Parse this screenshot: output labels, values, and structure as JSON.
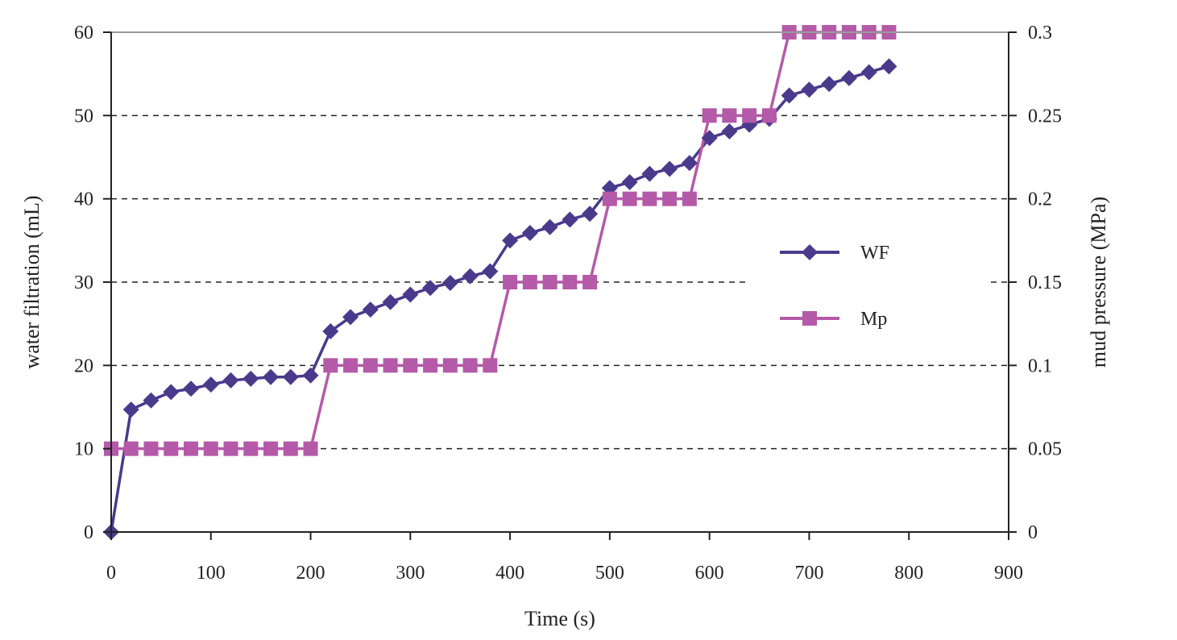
{
  "chart_data": {
    "type": "line",
    "title": "",
    "xlabel": "Time (s)",
    "ylabel": "water filtration (mL)",
    "y2label": "mud pressure (MPa)",
    "xlim": [
      0,
      900
    ],
    "ylim": [
      0,
      60
    ],
    "y2lim": [
      0,
      0.3
    ],
    "xticks": [
      "0",
      "100",
      "200",
      "300",
      "400",
      "500",
      "600",
      "700",
      "800",
      "900"
    ],
    "yticks": [
      "0",
      "10",
      "20",
      "30",
      "40",
      "50",
      "60"
    ],
    "y2ticks": [
      "0",
      "0.05",
      "0.1",
      "0.15",
      "0.2",
      "0.25",
      "0.3"
    ],
    "grid": "horizontal dashed",
    "legend_position": "right",
    "series": [
      {
        "name": "WF",
        "axis": "left",
        "marker": "diamond",
        "color": "#4a3a8c",
        "x": [
          0,
          20,
          40,
          60,
          80,
          100,
          120,
          140,
          160,
          180,
          200,
          220,
          240,
          260,
          280,
          300,
          320,
          340,
          360,
          380,
          400,
          420,
          440,
          460,
          480,
          500,
          520,
          540,
          560,
          580,
          600,
          620,
          640,
          660,
          680,
          700,
          720,
          740,
          760,
          780
        ],
        "values": [
          0,
          14.7,
          15.8,
          16.8,
          17.2,
          17.7,
          18.2,
          18.4,
          18.6,
          18.6,
          18.8,
          24.1,
          25.8,
          26.7,
          27.6,
          28.5,
          29.3,
          29.9,
          30.7,
          31.3,
          35.0,
          35.9,
          36.6,
          37.5,
          38.2,
          41.3,
          42.0,
          43.0,
          43.6,
          44.3,
          47.3,
          48.1,
          48.9,
          49.6,
          52.4,
          53.1,
          53.8,
          54.5,
          55.2,
          55.9
        ]
      },
      {
        "name": "Mp",
        "axis": "right",
        "marker": "square",
        "color": "#b45aa8",
        "x": [
          0,
          20,
          40,
          60,
          80,
          100,
          120,
          140,
          160,
          180,
          200,
          220,
          240,
          260,
          280,
          300,
          320,
          340,
          360,
          380,
          400,
          420,
          440,
          460,
          480,
          500,
          520,
          540,
          560,
          580,
          600,
          620,
          640,
          660,
          680,
          700,
          720,
          740,
          760,
          780
        ],
        "values": [
          0.05,
          0.05,
          0.05,
          0.05,
          0.05,
          0.05,
          0.05,
          0.05,
          0.05,
          0.05,
          0.05,
          0.1,
          0.1,
          0.1,
          0.1,
          0.1,
          0.1,
          0.1,
          0.1,
          0.1,
          0.15,
          0.15,
          0.15,
          0.15,
          0.15,
          0.2,
          0.2,
          0.2,
          0.2,
          0.2,
          0.25,
          0.25,
          0.25,
          0.25,
          0.3,
          0.3,
          0.3,
          0.3,
          0.3,
          0.3
        ]
      }
    ]
  }
}
